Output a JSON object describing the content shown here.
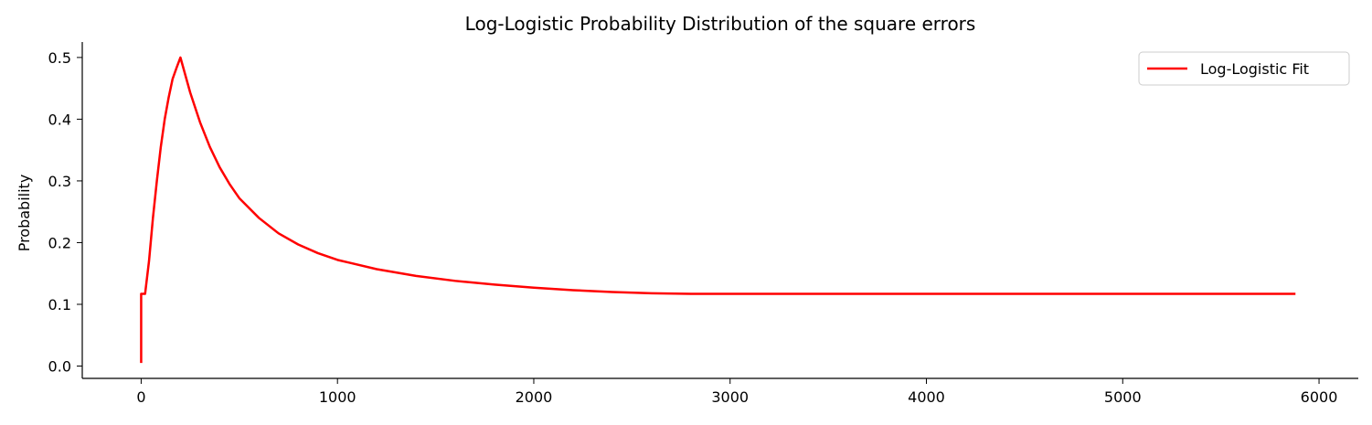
{
  "chart_data": {
    "type": "line",
    "title": "Log-Logistic Probability Distribution of the square errors",
    "xlabel": "",
    "ylabel": "Probability",
    "xlim": [
      -300,
      6200
    ],
    "ylim": [
      -0.02,
      0.525
    ],
    "x_ticks": [
      0,
      1000,
      2000,
      3000,
      4000,
      5000,
      6000
    ],
    "x_tick_labels": [
      "0",
      "1000",
      "2000",
      "3000",
      "4000",
      "5000",
      "6000"
    ],
    "y_ticks": [
      0.0,
      0.1,
      0.2,
      0.3,
      0.4,
      0.5
    ],
    "y_tick_labels": [
      "0.0",
      "0.1",
      "0.2",
      "0.3",
      "0.4",
      "0.5"
    ],
    "grid": false,
    "legend_position": "top-right",
    "series": [
      {
        "name": "Log-Logistic Fit",
        "color": "#ff0000",
        "x": [
          0,
          0,
          20,
          40,
          60,
          80,
          100,
          120,
          140,
          160,
          180,
          200,
          250,
          300,
          350,
          400,
          450,
          500,
          600,
          700,
          800,
          900,
          1000,
          1200,
          1400,
          1600,
          1800,
          2000,
          2200,
          2400,
          2600,
          2800,
          3000,
          3500,
          4000,
          4500,
          5000,
          5500,
          5880
        ],
        "y": [
          0.005,
          0.117,
          0.117,
          0.17,
          0.24,
          0.3,
          0.355,
          0.4,
          0.435,
          0.465,
          0.483,
          0.5,
          0.443,
          0.395,
          0.355,
          0.322,
          0.295,
          0.272,
          0.24,
          0.215,
          0.197,
          0.183,
          0.172,
          0.157,
          0.146,
          0.138,
          0.132,
          0.127,
          0.123,
          0.12,
          0.118,
          0.117,
          0.117,
          0.117,
          0.117,
          0.117,
          0.117,
          0.117,
          0.117
        ]
      }
    ]
  }
}
